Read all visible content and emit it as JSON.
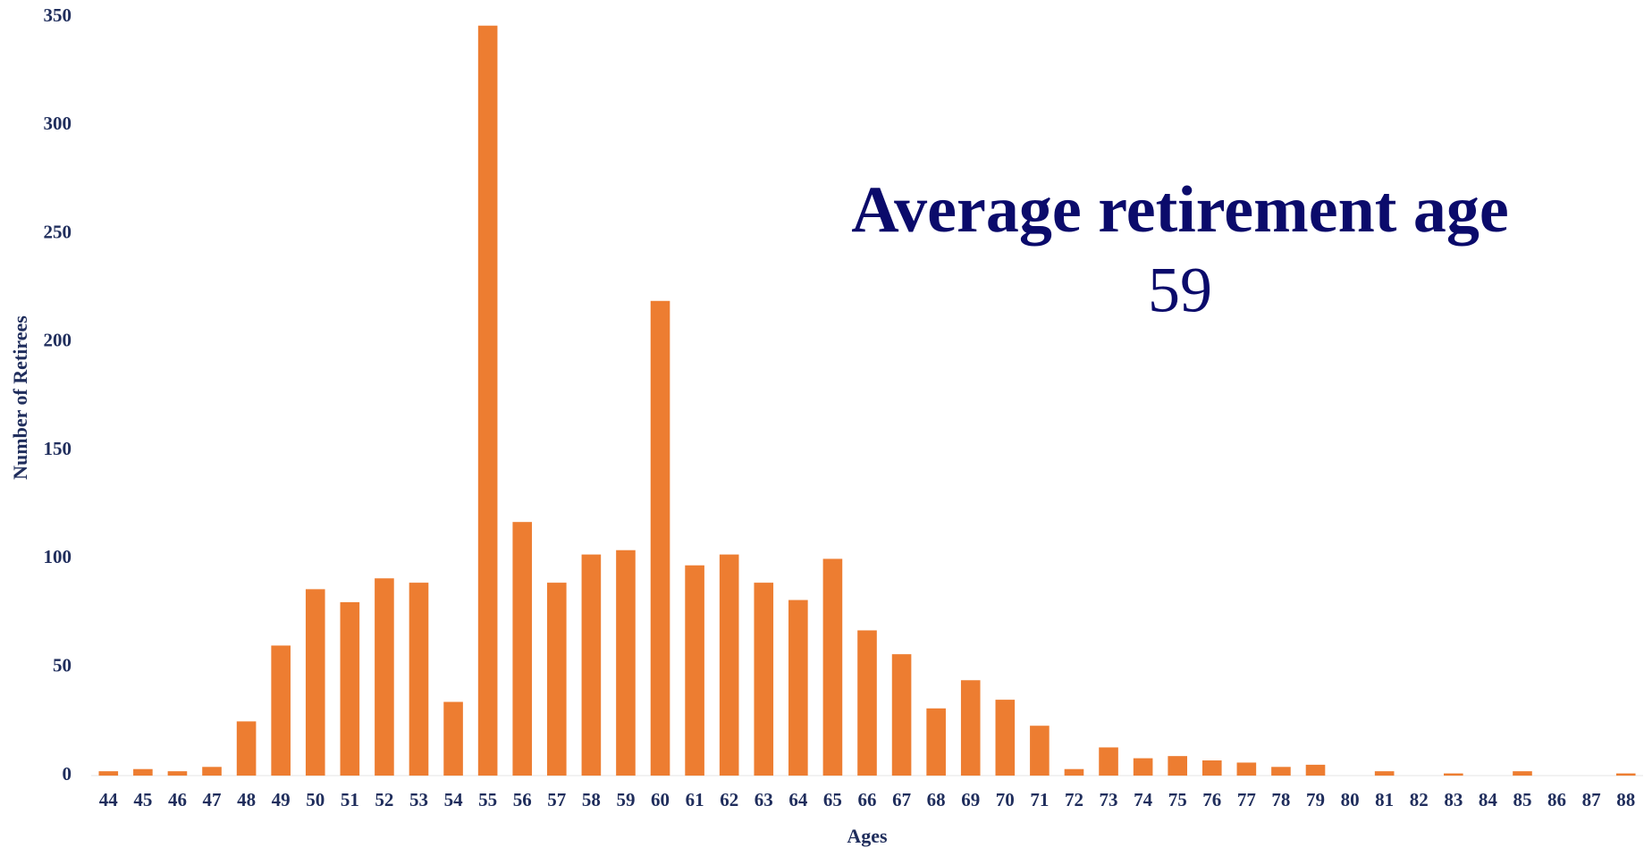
{
  "chart_data": {
    "type": "bar",
    "x_label": "Ages",
    "y_label": "Number of Retirees",
    "annotations": [
      "Average retirement age",
      "59"
    ],
    "categories": [
      "44",
      "45",
      "46",
      "47",
      "48",
      "49",
      "50",
      "51",
      "52",
      "53",
      "54",
      "55",
      "56",
      "57",
      "58",
      "59",
      "60",
      "61",
      "62",
      "63",
      "64",
      "65",
      "66",
      "67",
      "68",
      "69",
      "70",
      "71",
      "72",
      "73",
      "74",
      "75",
      "76",
      "77",
      "78",
      "79",
      "80",
      "81",
      "82",
      "83",
      "84",
      "85",
      "86",
      "87",
      "88"
    ],
    "values": [
      2,
      3,
      2,
      4,
      25,
      60,
      86,
      80,
      91,
      89,
      34,
      346,
      117,
      89,
      102,
      104,
      219,
      97,
      102,
      89,
      81,
      100,
      67,
      56,
      31,
      44,
      35,
      23,
      3,
      13,
      8,
      9,
      7,
      6,
      4,
      5,
      0,
      2,
      0,
      1,
      0,
      2,
      0,
      0,
      1
    ],
    "color": "#ed7d31",
    "ylim": [
      0,
      350
    ],
    "yticks": [
      0,
      50,
      100,
      150,
      200,
      250,
      300,
      350
    ],
    "grid": false
  }
}
